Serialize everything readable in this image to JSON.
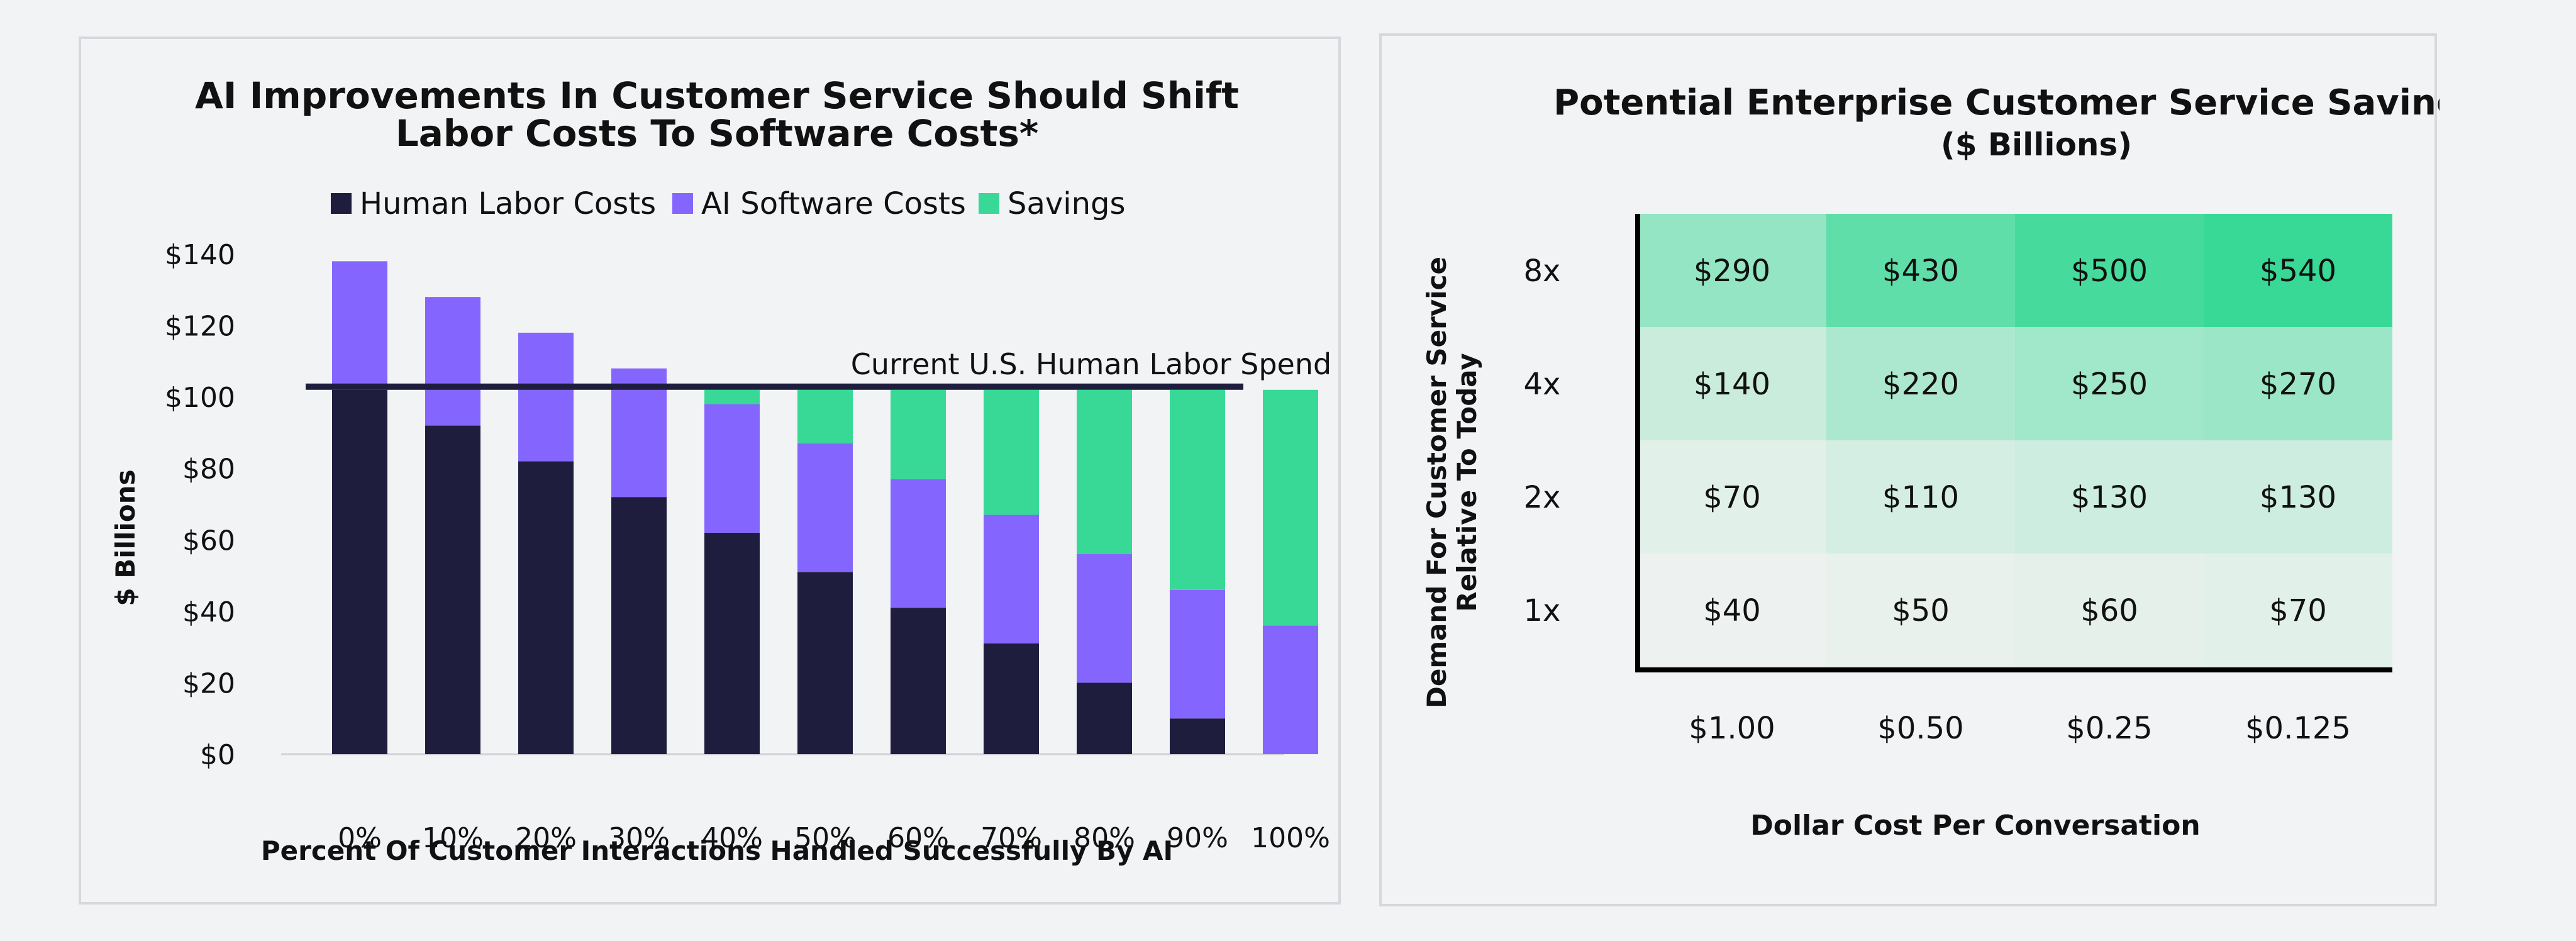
{
  "chart_data": [
    {
      "type": "bar",
      "stacked": true,
      "title_lines": [
        "AI Improvements In Customer Service Should Shift",
        "Labor Costs To Software Costs*"
      ],
      "xlabel": "Percent Of Customer Interactions Handled Successfully By AI",
      "ylabel": "$ Billions",
      "categories": [
        "0%",
        "10%",
        "20%",
        "30%",
        "40%",
        "50%",
        "60%",
        "70%",
        "80%",
        "90%",
        "100%"
      ],
      "series": [
        {
          "name": "Human Labor Costs",
          "color": "#1f1d3e",
          "values": [
            102,
            92,
            82,
            72,
            62,
            51,
            41,
            31,
            20,
            10,
            0
          ]
        },
        {
          "name": "AI Software Costs",
          "color": "#8466fe",
          "values": [
            36,
            36,
            36,
            36,
            36,
            36,
            36,
            36,
            36,
            36,
            36
          ]
        },
        {
          "name": "Savings",
          "color": "#38d996",
          "values": [
            0,
            0,
            0,
            0,
            4,
            15,
            25,
            35,
            46,
            56,
            66
          ]
        }
      ],
      "ylim": [
        0,
        140
      ],
      "yticks": [
        0,
        20,
        40,
        60,
        80,
        100,
        120,
        140
      ],
      "ytick_labels": [
        "$0",
        "$20",
        "$40",
        "$60",
        "$80",
        "$100",
        "$120",
        "$140"
      ],
      "reference_line": {
        "label": "Current U.S. Human Labor Spend",
        "value": 102,
        "color": "#1f1d3e"
      },
      "legend_position": "top",
      "grid": false
    },
    {
      "type": "heatmap",
      "title": "Potential Enterprise Customer Service Savings**",
      "subtitle": "($ Billions)",
      "ylabel_lines": [
        "Demand For Customer Service",
        "Relative To Today"
      ],
      "xlabel": "Dollar Cost Per Conversation",
      "rows": [
        "8x",
        "4x",
        "2x",
        "1x"
      ],
      "columns": [
        "$1.00",
        "$0.50",
        "$0.25",
        "$0.125"
      ],
      "values": [
        [
          290,
          430,
          500,
          540
        ],
        [
          140,
          220,
          250,
          270
        ],
        [
          70,
          110,
          130,
          130
        ],
        [
          40,
          50,
          60,
          70
        ]
      ],
      "labels": [
        [
          "$290",
          "$430",
          "$500",
          "$540"
        ],
        [
          "$140",
          "$220",
          "$250",
          "$270"
        ],
        [
          "$70",
          "$110",
          "$130",
          "$130"
        ],
        [
          "$40",
          "$50",
          "$60",
          "$70"
        ]
      ],
      "color_scale": [
        "#edf1ef",
        "#38d996"
      ]
    }
  ]
}
